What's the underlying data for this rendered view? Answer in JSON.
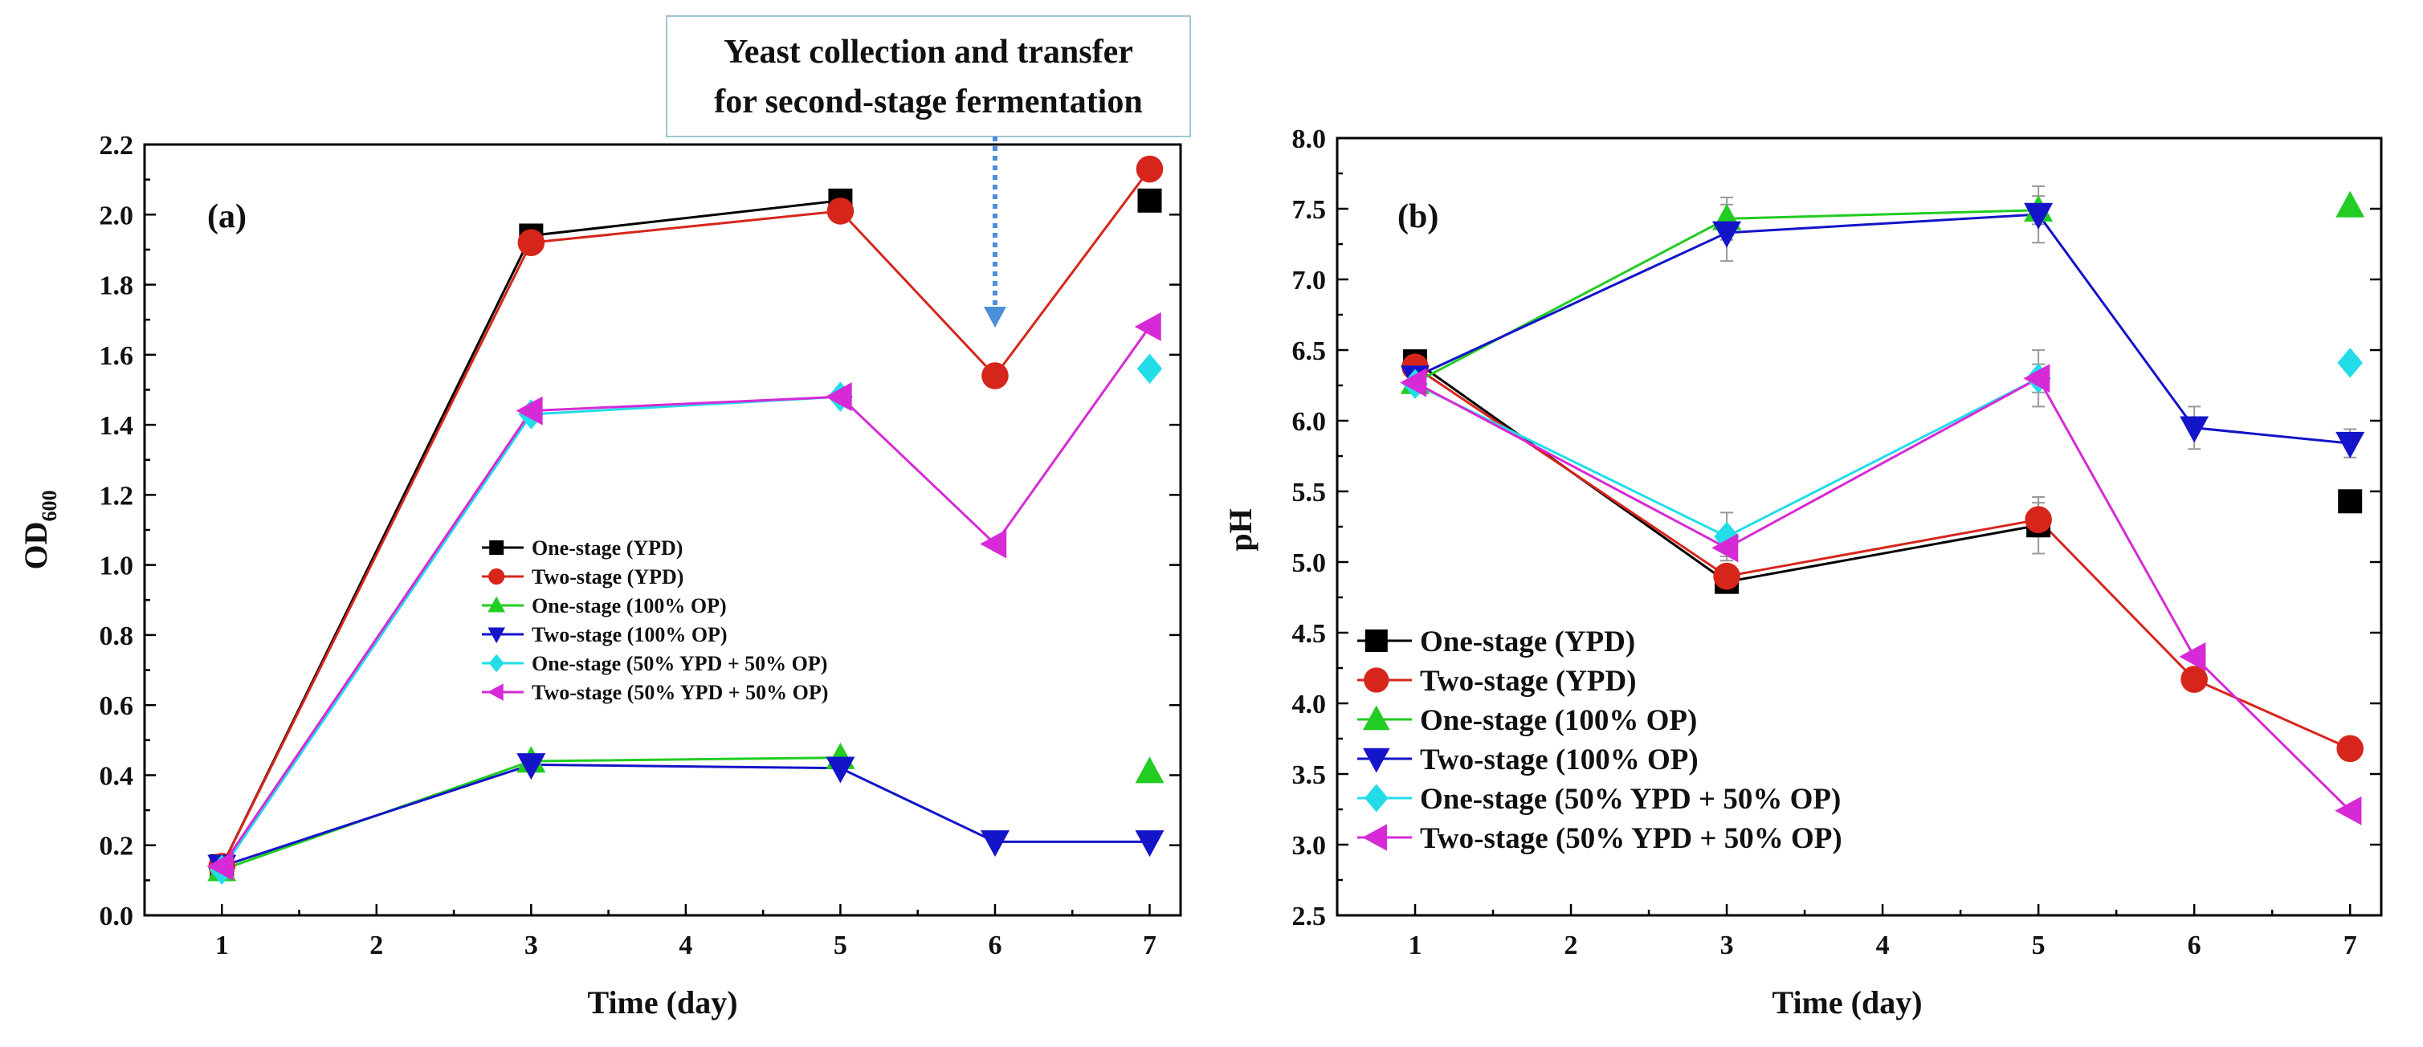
{
  "colors": {
    "black": "#000000",
    "red": "#d6261c",
    "green": "#22cc22",
    "blue": "#1414c8",
    "cyan": "#22dde8",
    "magenta": "#d62ad6",
    "annotation_arrow": "#4a8fd8",
    "annotation_border": "#9ec7d8"
  },
  "annotation": {
    "line1": "Yeast collection and transfer",
    "line2": "for second-stage fermentation"
  },
  "chart_data": [
    {
      "type": "line",
      "panel_label": "(a)",
      "xlabel": "Time (day)",
      "ylabel_main": "OD",
      "ylabel_sub": "600",
      "xlim": [
        0.5,
        7.2
      ],
      "ylim": [
        0.0,
        2.2
      ],
      "xticks": [
        1,
        2,
        3,
        4,
        5,
        6,
        7
      ],
      "yticks": [
        0.0,
        0.2,
        0.4,
        0.6,
        0.8,
        1.0,
        1.2,
        1.4,
        1.6,
        1.8,
        2.0,
        2.2
      ],
      "xtick_labels": [
        "1",
        "2",
        "3",
        "4",
        "5",
        "6",
        "7"
      ],
      "ytick_labels": [
        "0.0",
        "0.2",
        "0.4",
        "0.6",
        "0.8",
        "1.0",
        "1.2",
        "1.4",
        "1.6",
        "1.8",
        "2.0",
        "2.2"
      ],
      "legend_position": "center-right",
      "series": [
        {
          "name": "One-stage (YPD)",
          "color_key": "black",
          "marker": "square",
          "x": [
            1,
            3,
            5
          ],
          "y": [
            0.14,
            1.94,
            2.04
          ],
          "extra_x": [
            7
          ],
          "extra_y": [
            2.04
          ],
          "err": [
            0,
            0,
            0
          ]
        },
        {
          "name": "Two-stage (YPD)",
          "color_key": "red",
          "marker": "circle",
          "x": [
            1,
            3,
            5,
            6,
            7
          ],
          "y": [
            0.14,
            1.92,
            2.01,
            1.54,
            2.13
          ],
          "extra_x": [],
          "extra_y": [],
          "err": [
            0,
            0,
            0,
            0,
            0
          ]
        },
        {
          "name": "One-stage (100% OP)",
          "color_key": "green",
          "marker": "triangle-up",
          "x": [
            1,
            3,
            5
          ],
          "y": [
            0.13,
            0.44,
            0.45
          ],
          "extra_x": [
            7
          ],
          "extra_y": [
            0.41
          ],
          "err": [
            0,
            0,
            0
          ]
        },
        {
          "name": "Two-stage (100% OP)",
          "color_key": "blue",
          "marker": "triangle-down",
          "x": [
            1,
            3,
            5,
            6,
            7
          ],
          "y": [
            0.14,
            0.43,
            0.42,
            0.21,
            0.21
          ],
          "extra_x": [],
          "extra_y": [],
          "err": [
            0,
            0,
            0,
            0,
            0
          ]
        },
        {
          "name": "One-stage (50% YPD + 50% OP)",
          "color_key": "cyan",
          "marker": "diamond",
          "x": [
            1,
            3,
            5
          ],
          "y": [
            0.13,
            1.43,
            1.48
          ],
          "extra_x": [
            7
          ],
          "extra_y": [
            1.56
          ],
          "err": [
            0,
            0,
            0
          ]
        },
        {
          "name": "Two-stage (50% YPD + 50% OP)",
          "color_key": "magenta",
          "marker": "triangle-left",
          "x": [
            1,
            3,
            5,
            6,
            7
          ],
          "y": [
            0.14,
            1.44,
            1.48,
            1.06,
            1.68
          ],
          "extra_x": [],
          "extra_y": [],
          "err": [
            0,
            0,
            0,
            0,
            0
          ]
        }
      ]
    },
    {
      "type": "line",
      "panel_label": "(b)",
      "xlabel": "Time (day)",
      "ylabel_main": "pH",
      "ylabel_sub": "",
      "xlim": [
        0.5,
        7.2
      ],
      "ylim": [
        2.5,
        8.0
      ],
      "xticks": [
        1,
        2,
        3,
        4,
        5,
        6,
        7
      ],
      "yticks": [
        2.5,
        3.0,
        3.5,
        4.0,
        4.5,
        5.0,
        5.5,
        6.0,
        6.5,
        7.0,
        7.5,
        8.0
      ],
      "xtick_labels": [
        "1",
        "2",
        "3",
        "4",
        "5",
        "6",
        "7"
      ],
      "ytick_labels": [
        "2.5",
        "3.0",
        "3.5",
        "4.0",
        "4.5",
        "5.0",
        "5.5",
        "6.0",
        "6.5",
        "7.0",
        "7.5",
        "8.0"
      ],
      "legend_position": "bottom-left",
      "series": [
        {
          "name": "One-stage (YPD)",
          "color_key": "black",
          "marker": "square",
          "x": [
            1,
            3,
            5
          ],
          "y": [
            6.42,
            4.86,
            5.26
          ],
          "extra_x": [
            7
          ],
          "extra_y": [
            5.43
          ],
          "err": [
            0,
            0.06,
            0.2
          ]
        },
        {
          "name": "Two-stage (YPD)",
          "color_key": "red",
          "marker": "circle",
          "x": [
            1,
            3,
            5,
            6,
            7
          ],
          "y": [
            6.38,
            4.9,
            5.3,
            4.17,
            3.68
          ],
          "extra_x": [],
          "extra_y": [],
          "err": [
            0,
            0.06,
            0.12,
            0,
            0
          ]
        },
        {
          "name": "One-stage (100% OP)",
          "color_key": "green",
          "marker": "triangle-up",
          "x": [
            1,
            3,
            5
          ],
          "y": [
            6.27,
            7.43,
            7.49
          ],
          "extra_x": [
            7
          ],
          "extra_y": [
            7.52
          ],
          "err": [
            0,
            0.15,
            0.1
          ]
        },
        {
          "name": "Two-stage (100% OP)",
          "color_key": "blue",
          "marker": "triangle-down",
          "x": [
            1,
            3,
            5,
            6,
            7
          ],
          "y": [
            6.31,
            7.33,
            7.46,
            5.95,
            5.84
          ],
          "extra_x": [],
          "extra_y": [],
          "err": [
            0,
            0.2,
            0.2,
            0.15,
            0.1
          ]
        },
        {
          "name": "One-stage (50% YPD + 50% OP)",
          "color_key": "cyan",
          "marker": "diamond",
          "x": [
            1,
            3,
            5
          ],
          "y": [
            6.26,
            5.18,
            6.3
          ],
          "extra_x": [
            7
          ],
          "extra_y": [
            6.41
          ],
          "err": [
            0,
            0.17,
            0.2
          ]
        },
        {
          "name": "Two-stage (50% YPD + 50% OP)",
          "color_key": "magenta",
          "marker": "triangle-left",
          "x": [
            1,
            3,
            5,
            6,
            7
          ],
          "y": [
            6.27,
            5.1,
            6.3,
            4.33,
            3.24
          ],
          "extra_x": [],
          "extra_y": [],
          "err": [
            0,
            0.06,
            0.1,
            0,
            0
          ]
        }
      ]
    }
  ]
}
